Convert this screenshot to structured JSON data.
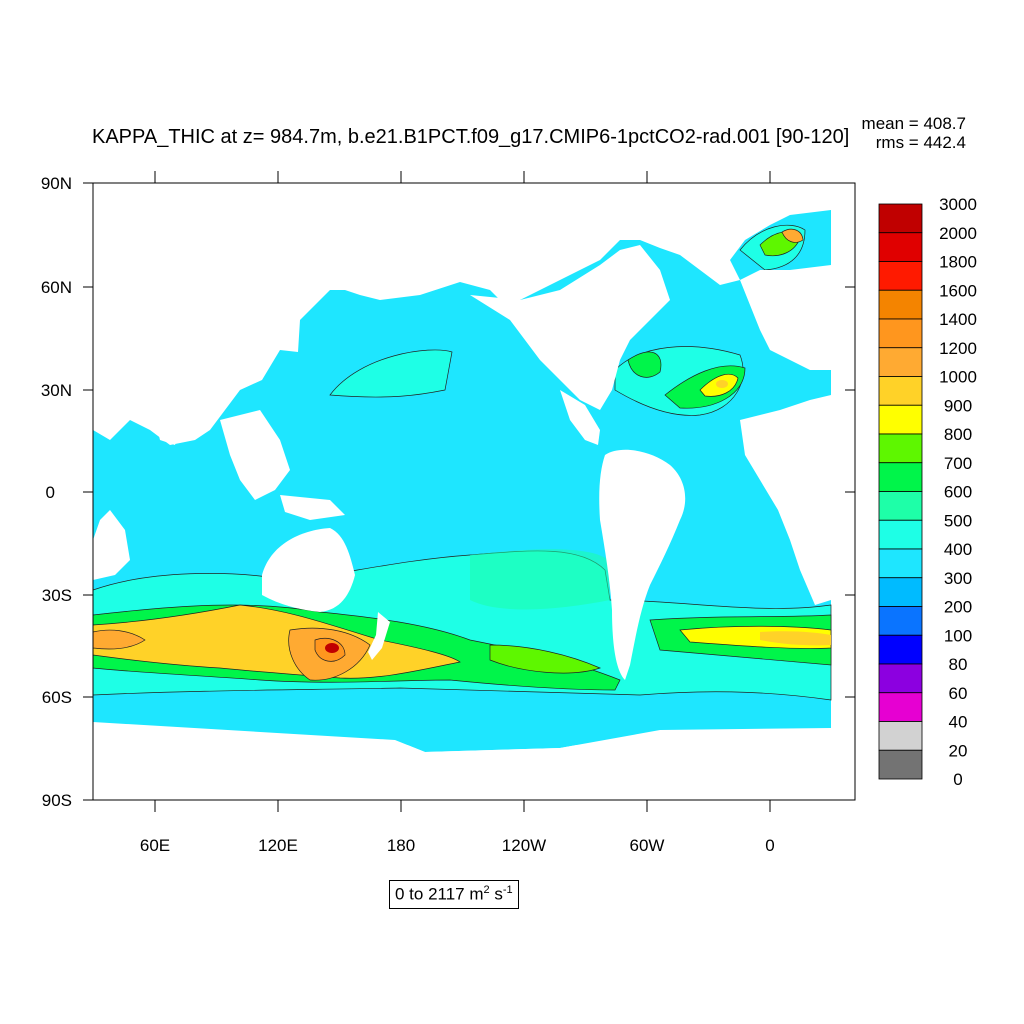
{
  "title": "KAPPA_THIC at z= 984.7m, b.e21.B1PCT.f09_g17.CMIP6-1pctCO2-rad.001 [90-120]",
  "stats": {
    "mean": "mean = 408.7",
    "rms": "rms = 442.4"
  },
  "range_label": {
    "prefix": "0 to 2117 m",
    "sup1": "2",
    "mid": " s",
    "sup2": "-1"
  },
  "map": {
    "y_ticks": [
      "90N",
      "60N",
      "30N",
      "0",
      "30S",
      "60S",
      "90S"
    ],
    "x_ticks": [
      "60E",
      "120E",
      "180",
      "120W",
      "60W",
      "0"
    ],
    "ocean_fill_base": "#1ee6ff"
  },
  "colorbar": {
    "labels": [
      "3000",
      "2000",
      "1800",
      "1600",
      "1400",
      "1200",
      "1000",
      "900",
      "800",
      "700",
      "600",
      "500",
      "400",
      "300",
      "200",
      "100",
      "80",
      "60",
      "40",
      "20",
      "0"
    ],
    "colors": [
      "#c00000",
      "#e00000",
      "#ff1a00",
      "#f48400",
      "#ff961e",
      "#ffaa32",
      "#ffd228",
      "#ffff00",
      "#5ef700",
      "#00f54a",
      "#1effa8",
      "#1effe6",
      "#1ee6ff",
      "#00bbff",
      "#0a74ff",
      "#0000ff",
      "#8c00e0",
      "#e600d2",
      "#d2d2d2",
      "#737373"
    ]
  }
}
